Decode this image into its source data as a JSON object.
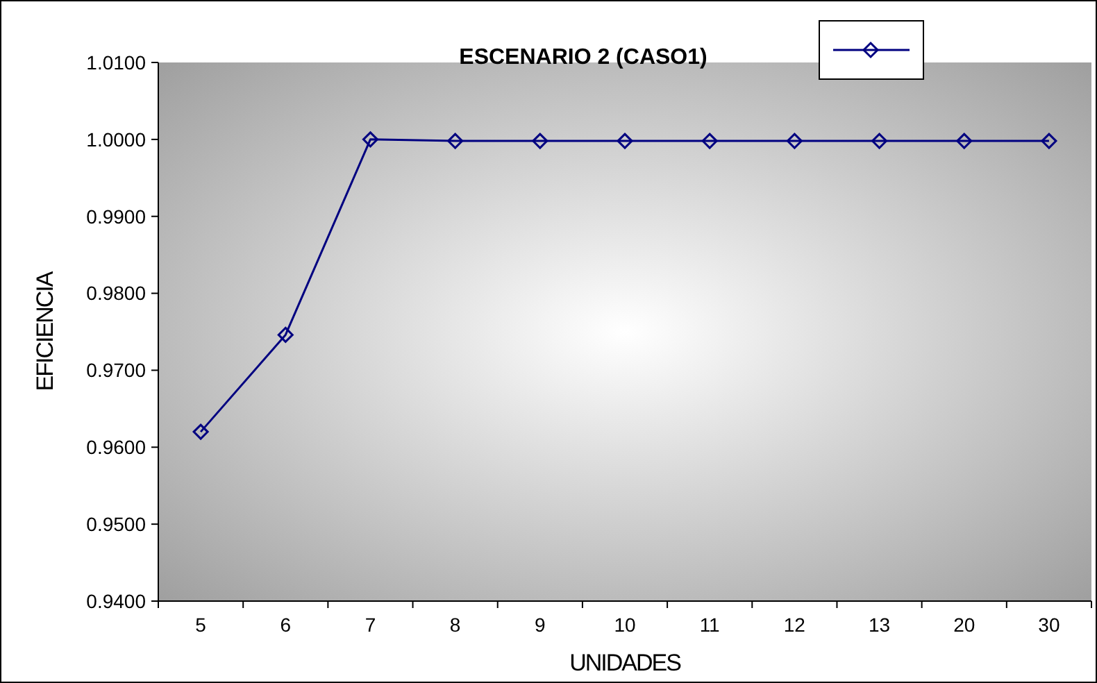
{
  "chart_data": {
    "type": "line",
    "title": "ESCENARIO 2 (CASO1)",
    "xlabel": "UNIDADES",
    "ylabel": "EFICIENCIA",
    "categories": [
      "5",
      "6",
      "7",
      "8",
      "9",
      "10",
      "11",
      "12",
      "13",
      "20",
      "30"
    ],
    "series": [
      {
        "color": "#000080",
        "values": [
          0.962,
          0.9746,
          1.0,
          0.9998,
          0.9998,
          0.9998,
          0.9998,
          0.9998,
          0.9998,
          0.9998,
          0.9998
        ]
      }
    ],
    "ylim": [
      0.94,
      1.01
    ],
    "yticks": [
      {
        "value": 0.94,
        "label": "0.9400"
      },
      {
        "value": 0.95,
        "label": "0.9500"
      },
      {
        "value": 0.96,
        "label": "0.9600"
      },
      {
        "value": 0.97,
        "label": "0.9700"
      },
      {
        "value": 0.98,
        "label": "0.9800"
      },
      {
        "value": 0.99,
        "label": "0.9900"
      },
      {
        "value": 1.0,
        "label": "1.0000"
      },
      {
        "value": 1.01,
        "label": "1.0100"
      }
    ],
    "marker": "diamond",
    "grid": false
  }
}
